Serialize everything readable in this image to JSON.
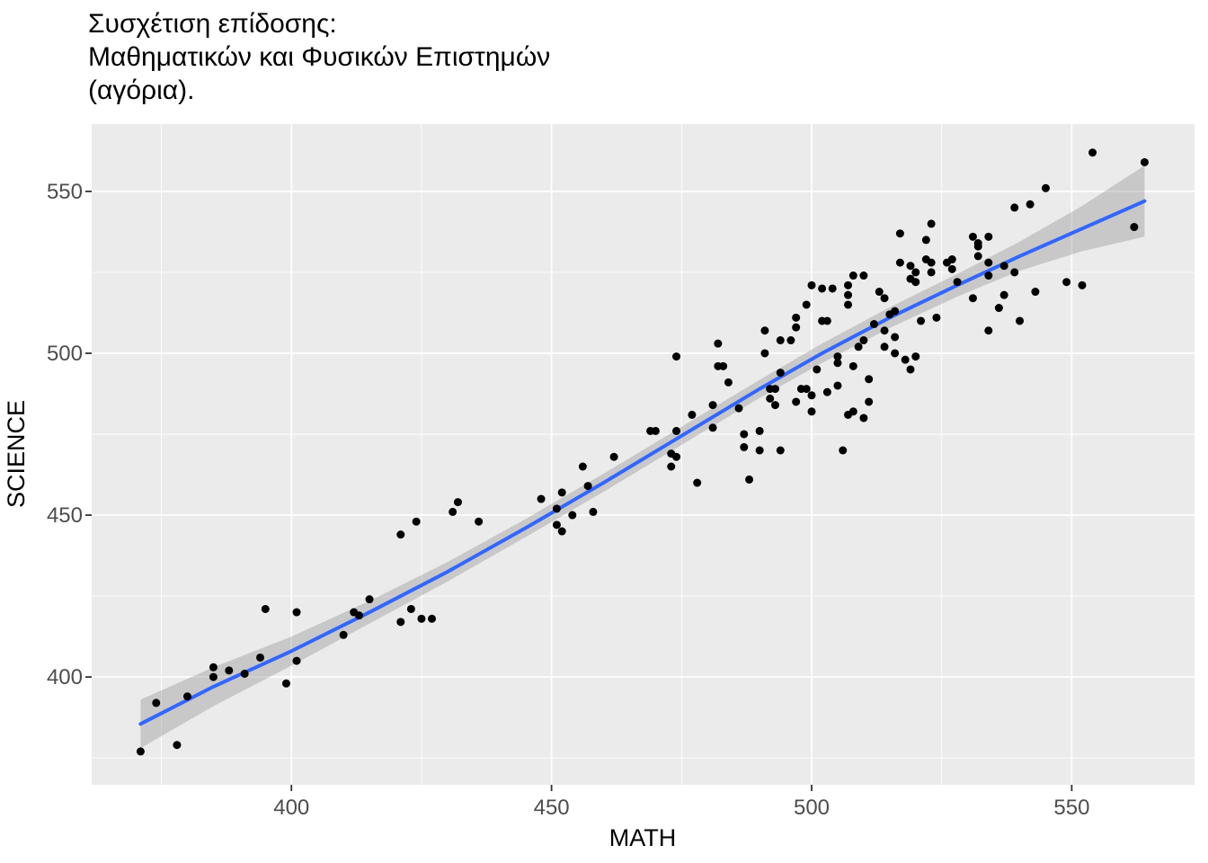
{
  "title": "Συσχέτιση επίδοσης:\n Μαθηματικών και Φυσικών Επιστημών\n (αγόρια).",
  "theme": {
    "background": "#FFFFFF",
    "panel_background": "#EBEBEB",
    "grid_color": "#FFFFFF",
    "tick_label_color": "#4D4D4D",
    "axis_title_color": "#000000",
    "tick_mark_color": "#333333",
    "point_color": "#000000",
    "smooth_line_color": "#3366FF",
    "ribbon_color": "#999999",
    "ribbon_opacity": 0.42
  },
  "chart_data": {
    "type": "scatter",
    "title": "Συσχέτιση επίδοσης: Μαθηματικών και Φυσικών Επιστημών (αγόρια).",
    "xlabel": "MATH",
    "ylabel": "SCIENCE",
    "legend": "none",
    "grid": "white major and minor gridlines on gray panel",
    "xlim": [
      361.6,
      573.6
    ],
    "ylim": [
      366.7,
      570.8
    ],
    "x_ticks": [
      400,
      450,
      500,
      550
    ],
    "y_ticks": [
      400,
      450,
      500,
      550
    ],
    "x_minor_ticks": [
      375,
      425,
      475,
      525,
      575
    ],
    "y_minor_ticks": [
      375,
      425,
      475,
      525,
      575
    ],
    "points": [
      [
        371,
        377
      ],
      [
        374,
        392
      ],
      [
        378,
        379
      ],
      [
        380,
        394
      ],
      [
        385,
        403
      ],
      [
        385,
        400
      ],
      [
        388,
        402
      ],
      [
        391,
        401
      ],
      [
        394,
        406
      ],
      [
        395,
        421
      ],
      [
        399,
        398
      ],
      [
        401,
        420
      ],
      [
        401,
        405
      ],
      [
        410,
        413
      ],
      [
        412,
        420
      ],
      [
        413,
        419
      ],
      [
        415,
        424
      ],
      [
        421,
        417
      ],
      [
        423,
        421
      ],
      [
        425,
        418
      ],
      [
        427,
        418
      ],
      [
        421,
        444
      ],
      [
        424,
        448
      ],
      [
        431,
        451
      ],
      [
        432,
        454
      ],
      [
        436,
        448
      ],
      [
        448,
        455
      ],
      [
        452,
        457
      ],
      [
        451,
        452
      ],
      [
        451,
        447
      ],
      [
        452,
        445
      ],
      [
        454,
        450
      ],
      [
        456,
        465
      ],
      [
        457,
        459
      ],
      [
        458,
        451
      ],
      [
        462,
        468
      ],
      [
        469,
        476
      ],
      [
        470,
        476
      ],
      [
        473,
        469
      ],
      [
        474,
        468
      ],
      [
        473,
        465
      ],
      [
        474,
        476
      ],
      [
        477,
        481
      ],
      [
        478,
        460
      ],
      [
        481,
        484
      ],
      [
        481,
        477
      ],
      [
        484,
        491
      ],
      [
        486,
        483
      ],
      [
        487,
        475
      ],
      [
        487,
        471
      ],
      [
        488,
        461
      ],
      [
        490,
        476
      ],
      [
        490,
        470
      ],
      [
        492,
        489
      ],
      [
        492,
        486
      ],
      [
        493,
        489
      ],
      [
        493,
        484
      ],
      [
        494,
        470
      ],
      [
        497,
        485
      ],
      [
        498,
        489
      ],
      [
        499,
        489
      ],
      [
        500,
        482
      ],
      [
        500,
        487
      ],
      [
        503,
        488
      ],
      [
        505,
        490
      ],
      [
        506,
        470
      ],
      [
        474,
        499
      ],
      [
        482,
        503
      ],
      [
        482,
        496
      ],
      [
        483,
        496
      ],
      [
        491,
        507
      ],
      [
        491,
        500
      ],
      [
        494,
        504
      ],
      [
        496,
        504
      ],
      [
        494,
        494
      ],
      [
        497,
        511
      ],
      [
        497,
        508
      ],
      [
        499,
        515
      ],
      [
        500,
        521
      ],
      [
        502,
        520
      ],
      [
        504,
        520
      ],
      [
        502,
        510
      ],
      [
        503,
        510
      ],
      [
        505,
        499
      ],
      [
        505,
        497
      ],
      [
        507,
        521
      ],
      [
        507,
        518
      ],
      [
        507,
        515
      ],
      [
        508,
        524
      ],
      [
        510,
        524
      ],
      [
        509,
        502
      ],
      [
        510,
        504
      ],
      [
        511,
        492
      ],
      [
        512,
        509
      ],
      [
        513,
        519
      ],
      [
        514,
        517
      ],
      [
        514,
        507
      ],
      [
        514,
        502
      ],
      [
        515,
        512
      ],
      [
        516,
        513
      ],
      [
        516,
        505
      ],
      [
        516,
        500
      ],
      [
        517,
        528
      ],
      [
        519,
        527
      ],
      [
        520,
        525
      ],
      [
        519,
        523
      ],
      [
        520,
        522
      ],
      [
        521,
        510
      ],
      [
        522,
        529
      ],
      [
        523,
        528
      ],
      [
        523,
        525
      ],
      [
        524,
        511
      ],
      [
        526,
        528
      ],
      [
        527,
        529
      ],
      [
        527,
        526
      ],
      [
        528,
        522
      ],
      [
        531,
        536
      ],
      [
        532,
        534
      ],
      [
        532,
        533
      ],
      [
        532,
        530
      ],
      [
        534,
        524
      ],
      [
        534,
        528
      ],
      [
        537,
        527
      ],
      [
        539,
        525
      ],
      [
        537,
        518
      ],
      [
        536,
        514
      ],
      [
        518,
        498
      ],
      [
        519,
        495
      ],
      [
        511,
        485
      ],
      [
        508,
        482
      ],
      [
        510,
        480
      ],
      [
        507,
        481
      ],
      [
        501,
        495
      ],
      [
        534,
        536
      ],
      [
        531,
        517
      ],
      [
        543,
        519
      ],
      [
        540,
        510
      ],
      [
        534,
        507
      ],
      [
        517,
        537
      ],
      [
        523,
        540
      ],
      [
        522,
        535
      ],
      [
        508,
        496
      ],
      [
        520,
        499
      ],
      [
        554,
        562
      ],
      [
        564,
        559
      ],
      [
        545,
        551
      ],
      [
        539,
        545
      ],
      [
        542,
        546
      ],
      [
        549,
        522
      ],
      [
        552,
        521
      ],
      [
        562,
        539
      ]
    ],
    "smooth_line": {
      "x": [
        371,
        385,
        400,
        415,
        430,
        445,
        460,
        475,
        490,
        502,
        515,
        528,
        540,
        552,
        564
      ],
      "y": [
        385.5,
        397,
        408,
        420,
        432.5,
        446,
        460,
        474.5,
        489,
        500,
        511,
        521,
        530,
        538.5,
        547
      ]
    },
    "ribbon": {
      "x": [
        371,
        385,
        400,
        415,
        430,
        445,
        460,
        475,
        490,
        502,
        515,
        528,
        540,
        552,
        564
      ],
      "upper": [
        393,
        403,
        412.5,
        423.5,
        435.5,
        448.8,
        462.8,
        477.3,
        491.8,
        503,
        514.2,
        524.5,
        534.5,
        545.5,
        558
      ],
      "lower": [
        378,
        391,
        403.5,
        416.5,
        429.5,
        443.2,
        457.2,
        471.7,
        486.2,
        497,
        507.8,
        517.5,
        525.5,
        531.5,
        536
      ]
    }
  }
}
